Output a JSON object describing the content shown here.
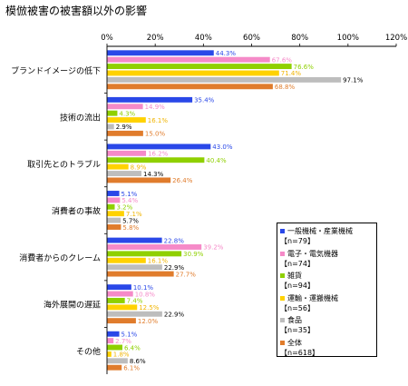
{
  "title": "模倣被害の被害額以外の影響",
  "chart_data": {
    "type": "bar",
    "orientation": "horizontal",
    "title": "模倣被害の被害額以外の影響",
    "xlim": [
      0,
      120
    ],
    "x_ticks": [
      "0%",
      "20%",
      "40%",
      "60%",
      "80%",
      "100%",
      "120%"
    ],
    "grid": false,
    "legend_position": "right",
    "categories": [
      "ブランドイメージの低下",
      "技術の流出",
      "取引先とのトラブル",
      "消費者の事故",
      "消費者からのクレーム",
      "海外展開の遅延",
      "その他"
    ],
    "series": [
      {
        "name": "一般機械・産業機械",
        "n": "【n=79】",
        "color": "#2a48e8",
        "values": [
          44.3,
          35.4,
          43.0,
          5.1,
          22.8,
          10.1,
          5.1
        ],
        "labels": [
          "44.3%",
          "35.4%",
          "43.0%",
          "5.1%",
          "22.8%",
          "10.1%",
          "5.1%"
        ]
      },
      {
        "name": "電子・電気機器",
        "n": "【n=74】",
        "color": "#f58ac8",
        "values": [
          67.6,
          14.9,
          16.2,
          5.4,
          39.2,
          10.8,
          2.7
        ],
        "labels": [
          "67.6%",
          "14.9%",
          "16.2%",
          "5.4%",
          "39.2%",
          "10.8%",
          "2.7%"
        ]
      },
      {
        "name": "雑貨",
        "n": "【n=94】",
        "color": "#8fd000",
        "values": [
          76.6,
          4.3,
          40.4,
          3.2,
          30.9,
          7.4,
          6.4
        ],
        "labels": [
          "76.6%",
          "4.3%",
          "40.4%",
          "3.2%",
          "30.9%",
          "7.4%",
          "6.4%"
        ]
      },
      {
        "name": "運輸・運搬機械",
        "n": "【n=56】",
        "color": "#ffd200",
        "values": [
          71.4,
          16.1,
          8.9,
          7.1,
          16.1,
          12.5,
          1.8
        ],
        "labels": [
          "71.4%",
          "16.1%",
          "8.9%",
          "7.1%",
          "16.1%",
          "12.5%",
          "1.8%"
        ]
      },
      {
        "name": "食品",
        "n": "【n=35】",
        "color": "#bdbdbd",
        "values": [
          97.1,
          2.9,
          14.3,
          5.7,
          22.9,
          22.9,
          8.6
        ],
        "labels": [
          "97.1%",
          "2.9%",
          "14.3%",
          "5.7%",
          "22.9%",
          "22.9%",
          "8.6%"
        ]
      },
      {
        "name": "全体",
        "n": "【n=618】",
        "color": "#e07c2c",
        "values": [
          68.8,
          15.0,
          26.4,
          5.8,
          27.7,
          12.0,
          6.1
        ],
        "labels": [
          "68.8%",
          "15.0%",
          "26.4%",
          "5.8%",
          "27.7%",
          "12.0%",
          "6.1%"
        ]
      }
    ]
  }
}
